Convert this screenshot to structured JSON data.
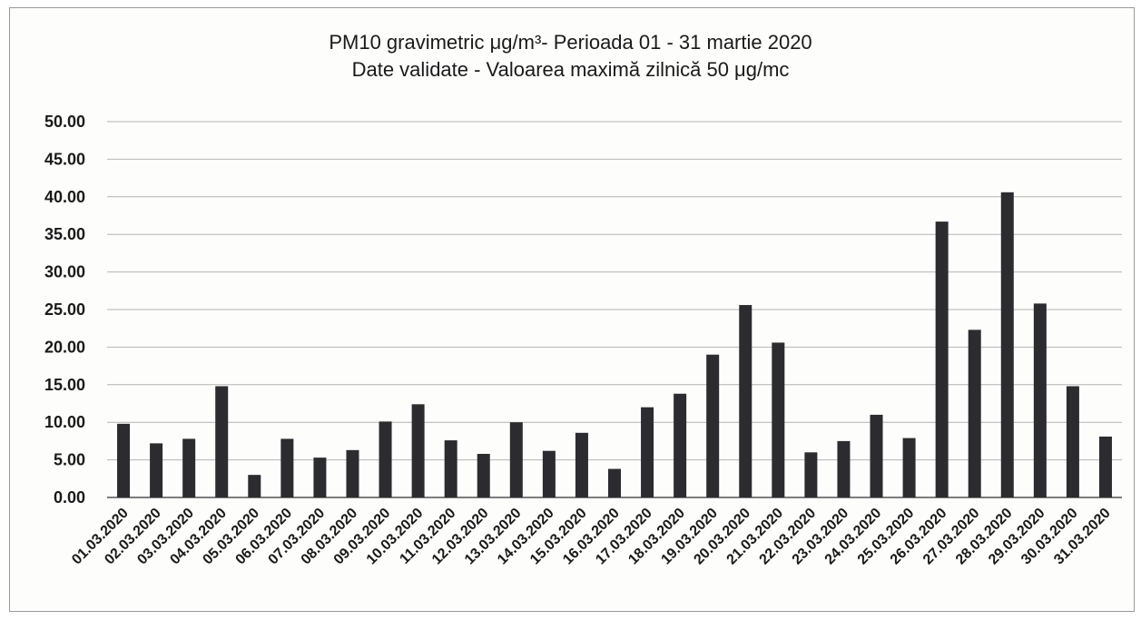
{
  "chart_data": {
    "type": "bar",
    "title": "PM10 gravimetric μg/m³- Perioada 01 - 31 martie 2020",
    "subtitle": "Date validate -  Valoarea maximă zilnică 50 μg/mc",
    "ylim": [
      0,
      50
    ],
    "yticks": [
      "0.00",
      "5.00",
      "10.00",
      "15.00",
      "20.00",
      "25.00",
      "30.00",
      "35.00",
      "40.00",
      "45.00",
      "50.00"
    ],
    "grid": true,
    "bar_color": "#2b2b30",
    "categories": [
      "01.03.2020",
      "02.03.2020",
      "03.03.2020",
      "04.03.2020",
      "05.03.2020",
      "06.03.2020",
      "07.03.2020",
      "08.03.2020",
      "09.03.2020",
      "10.03.2020",
      "11.03.2020",
      "12.03.2020",
      "13.03.2020",
      "14.03.2020",
      "15.03.2020",
      "16.03.2020",
      "17.03.2020",
      "18.03.2020",
      "19.03.2020",
      "20.03.2020",
      "21.03.2020",
      "22.03.2020",
      "23.03.2020",
      "24.03.2020",
      "25.03.2020",
      "26.03.2020",
      "27.03.2020",
      "28.03.2020",
      "29.03.2020",
      "30.03.2020",
      "31.03.2020"
    ],
    "values": [
      9.8,
      7.2,
      7.8,
      14.8,
      3.0,
      7.8,
      5.3,
      6.3,
      10.1,
      12.4,
      7.6,
      5.8,
      10.0,
      6.2,
      8.6,
      3.8,
      12.0,
      13.8,
      19.0,
      25.6,
      20.6,
      6.0,
      7.5,
      11.0,
      7.9,
      36.7,
      22.3,
      40.6,
      25.8,
      14.8,
      8.1
    ]
  }
}
